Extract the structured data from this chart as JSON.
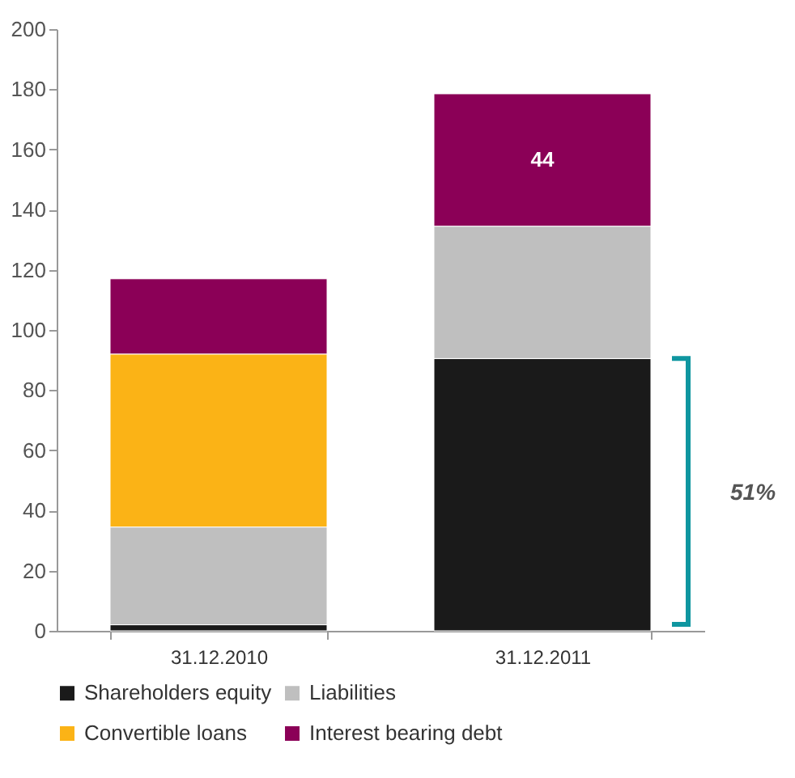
{
  "chart_data": {
    "type": "bar",
    "stacked": true,
    "categories": [
      "31.12.2010",
      "31.12.2011"
    ],
    "series": [
      {
        "name": "Shareholders equity",
        "color": "#1a1a1a",
        "values": [
          2,
          90.5
        ]
      },
      {
        "name": "Liabilities",
        "color": "#bfbfbf",
        "values": [
          32.5,
          44
        ]
      },
      {
        "name": "Convertible loans",
        "color": "#fbb316",
        "values": [
          57.5,
          null
        ]
      },
      {
        "name": "Interest bearing debt",
        "color": "#8b0057",
        "values": [
          25,
          44
        ],
        "value_labels": [
          null,
          "44"
        ]
      }
    ],
    "ylim": [
      0,
      200
    ],
    "yticks": [
      0,
      20,
      40,
      60,
      80,
      100,
      120,
      140,
      160,
      180,
      200
    ],
    "grid": false,
    "legend": "bottom",
    "annotations": [
      "51%"
    ]
  }
}
